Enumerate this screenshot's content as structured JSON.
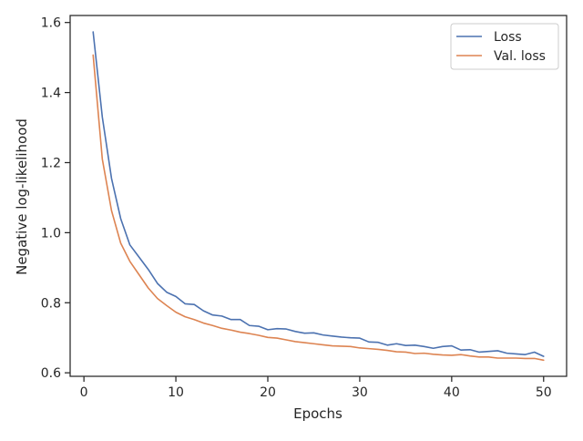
{
  "chart_data": {
    "type": "line",
    "title": "",
    "xlabel": "Epochs",
    "ylabel": "Negative log-likelihood",
    "xlim": [
      -1.5,
      52.5
    ],
    "ylim": [
      0.59,
      1.62
    ],
    "x_ticks": [
      0,
      10,
      20,
      30,
      40,
      50
    ],
    "y_ticks": [
      0.6,
      0.8,
      1.0,
      1.2,
      1.4,
      1.6
    ],
    "y_tick_labels": [
      "0.6",
      "0.8",
      "1.0",
      "1.2",
      "1.4",
      "1.6"
    ],
    "grid": false,
    "legend_position": "top-right",
    "x": [
      1,
      2,
      3,
      4,
      5,
      6,
      7,
      8,
      9,
      10,
      11,
      12,
      13,
      14,
      15,
      16,
      17,
      18,
      19,
      20,
      21,
      22,
      23,
      24,
      25,
      26,
      27,
      28,
      29,
      30,
      31,
      32,
      33,
      34,
      35,
      36,
      37,
      38,
      39,
      40,
      41,
      42,
      43,
      44,
      45,
      46,
      47,
      48,
      49,
      50
    ],
    "series": [
      {
        "name": "Loss",
        "color": "#4c72b0",
        "values": [
          1.573,
          1.33,
          1.155,
          1.04,
          0.965,
          0.93,
          0.895,
          0.855,
          0.83,
          0.818,
          0.797,
          0.795,
          0.777,
          0.765,
          0.762,
          0.752,
          0.752,
          0.735,
          0.733,
          0.723,
          0.726,
          0.725,
          0.718,
          0.713,
          0.714,
          0.708,
          0.705,
          0.702,
          0.7,
          0.699,
          0.688,
          0.687,
          0.679,
          0.683,
          0.678,
          0.679,
          0.675,
          0.67,
          0.675,
          0.677,
          0.665,
          0.666,
          0.659,
          0.661,
          0.663,
          0.656,
          0.654,
          0.652,
          0.659,
          0.647
        ]
      },
      {
        "name": "Val. loss",
        "color": "#dd8452",
        "values": [
          1.507,
          1.21,
          1.063,
          0.97,
          0.918,
          0.88,
          0.842,
          0.812,
          0.792,
          0.773,
          0.76,
          0.752,
          0.742,
          0.735,
          0.727,
          0.722,
          0.716,
          0.712,
          0.707,
          0.701,
          0.699,
          0.694,
          0.689,
          0.686,
          0.683,
          0.68,
          0.677,
          0.676,
          0.675,
          0.671,
          0.669,
          0.667,
          0.664,
          0.66,
          0.659,
          0.655,
          0.656,
          0.653,
          0.651,
          0.65,
          0.652,
          0.648,
          0.645,
          0.645,
          0.642,
          0.642,
          0.642,
          0.641,
          0.641,
          0.636
        ]
      }
    ]
  }
}
